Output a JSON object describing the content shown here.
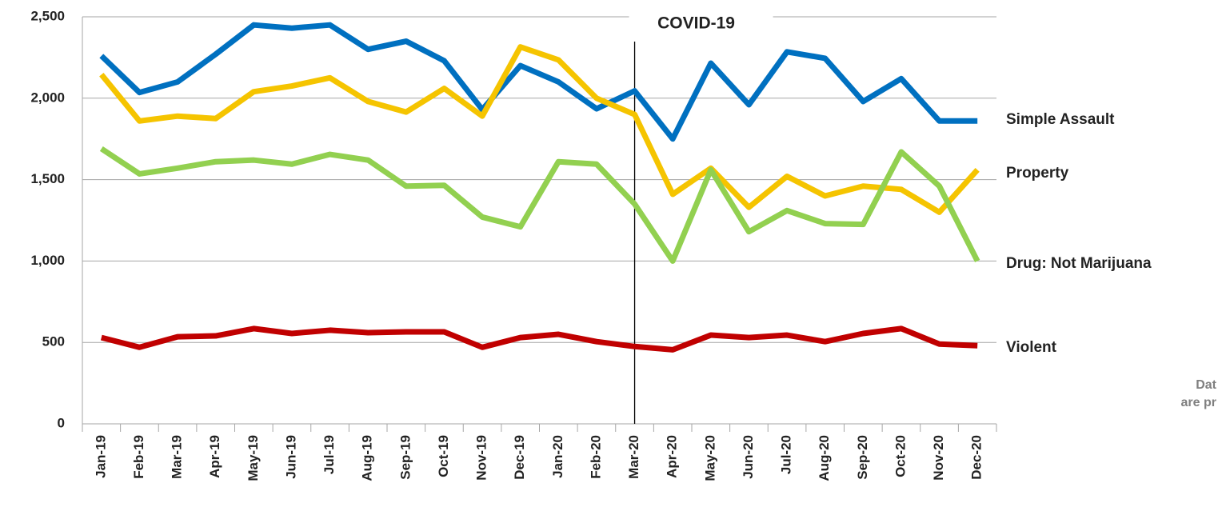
{
  "chart_data": {
    "type": "line",
    "categories": [
      "Jan-19",
      "Feb-19",
      "Mar-19",
      "Apr-19",
      "May-19",
      "Jun-19",
      "Jul-19",
      "Aug-19",
      "Sep-19",
      "Oct-19",
      "Nov-19",
      "Dec-19",
      "Jan-20",
      "Feb-20",
      "Mar-20",
      "Apr-20",
      "May-20",
      "Jun-20",
      "Jul-20",
      "Aug-20",
      "Sep-20",
      "Oct-20",
      "Nov-20",
      "Dec-20"
    ],
    "series": [
      {
        "name": "Simple Assault",
        "color": "#0070c0",
        "values": [
          2260,
          2035,
          2100,
          2270,
          2450,
          2430,
          2450,
          2300,
          2350,
          2230,
          1930,
          2200,
          2100,
          1935,
          2045,
          1750,
          2215,
          1960,
          2285,
          2245,
          1980,
          2120,
          1860,
          1860
        ]
      },
      {
        "name": "Property",
        "color": "#f5c400",
        "values": [
          2145,
          1860,
          1890,
          1875,
          2040,
          2075,
          2125,
          1980,
          1915,
          2060,
          1890,
          2315,
          2235,
          2000,
          1900,
          1410,
          1570,
          1330,
          1520,
          1400,
          1460,
          1440,
          1300,
          1560
        ]
      },
      {
        "name": "Drug: Not Marijuana",
        "color": "#92d050",
        "values": [
          1690,
          1535,
          1570,
          1610,
          1620,
          1595,
          1655,
          1620,
          1460,
          1465,
          1270,
          1210,
          1610,
          1595,
          1350,
          1000,
          1560,
          1180,
          1310,
          1230,
          1225,
          1670,
          1460,
          1000
        ]
      },
      {
        "name": "Violent",
        "color": "#c00000",
        "values": [
          530,
          470,
          535,
          540,
          585,
          555,
          575,
          560,
          565,
          565,
          470,
          530,
          550,
          505,
          475,
          455,
          545,
          530,
          545,
          505,
          555,
          585,
          490,
          480
        ]
      }
    ],
    "ylim": [
      0,
      2500
    ],
    "yticks": [
      0,
      500,
      {
        "value": 1000,
        "label": "1,000"
      },
      {
        "value": 1500,
        "label": "1,500"
      },
      {
        "value": 2000,
        "label": "2,000"
      },
      {
        "value": 2500,
        "label": "2,500"
      }
    ],
    "grid": true,
    "annotation": {
      "text": "COVID-19",
      "x": "Mar-20"
    },
    "notes": [
      "Dat",
      "are pr"
    ]
  }
}
